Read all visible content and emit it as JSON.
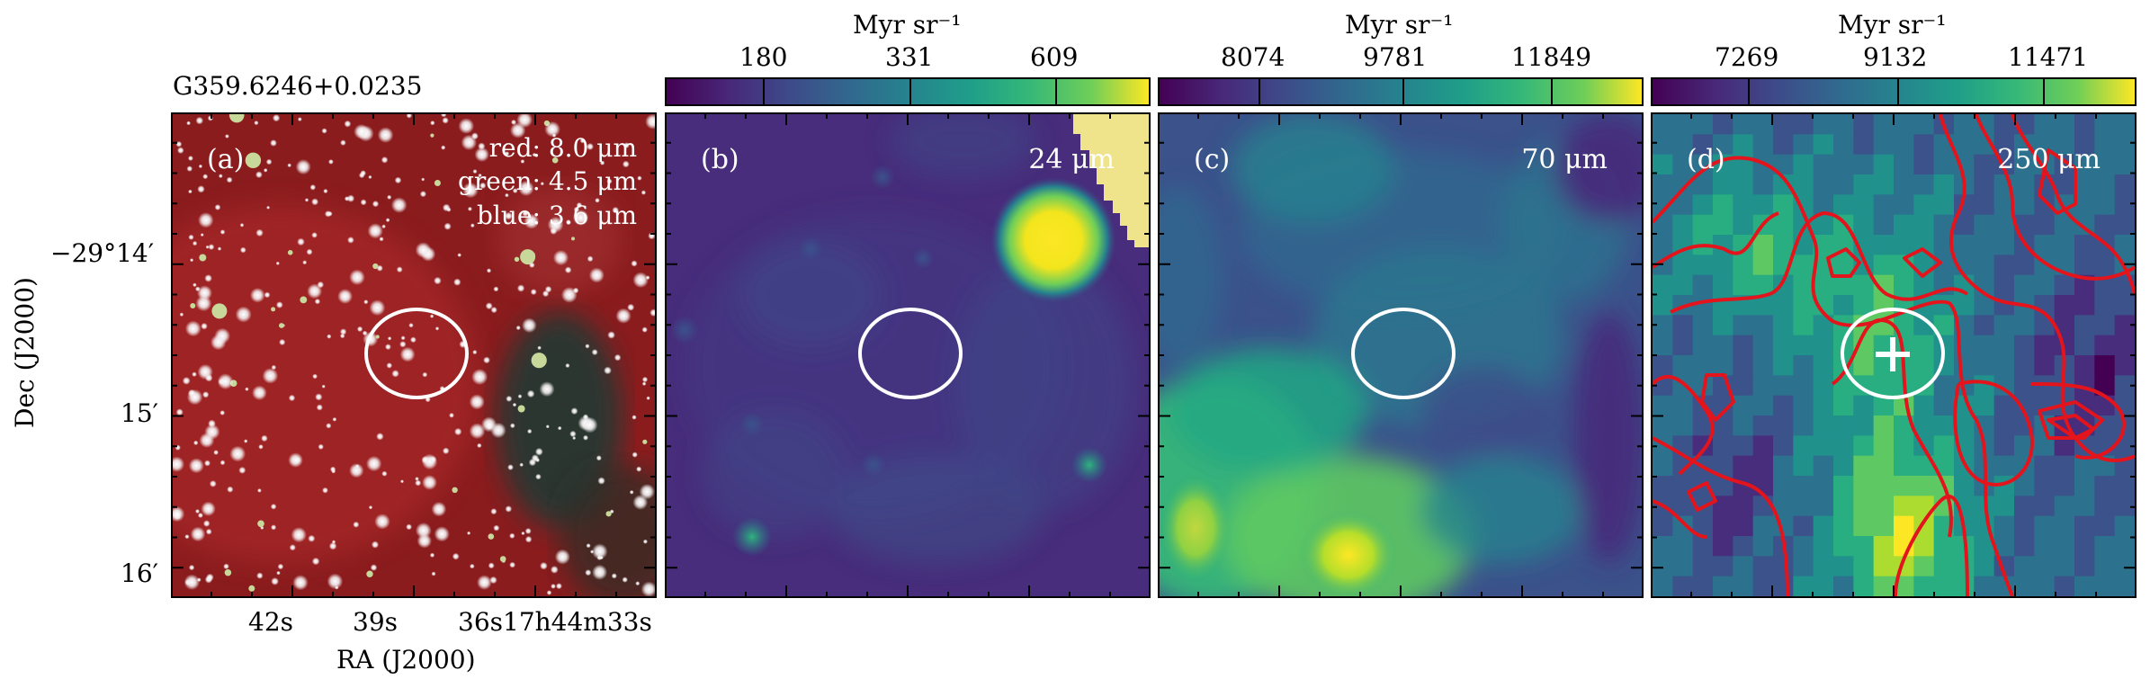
{
  "figure": {
    "source_name": "G359.6246+0.0235",
    "ra_axis_label": "RA (J2000)",
    "dec_axis_label": "Dec (J2000)",
    "ra_ticks": [
      "42s",
      "39s",
      "36s17h44m33s"
    ],
    "dec_ticks": [
      "−29°14′",
      "15′",
      "16′"
    ]
  },
  "panels": [
    {
      "id": "a",
      "label": "(a)",
      "legend": [
        "red: 8.0 μm",
        "green: 4.5 μm",
        "blue: 3.6 μm"
      ],
      "background": "#8c1a1a"
    },
    {
      "id": "b",
      "label": "(b)",
      "wavelength": "24 μm",
      "colorbar_unit": "Myr sr⁻¹",
      "colorbar_ticks": [
        "180",
        "331",
        "609"
      ]
    },
    {
      "id": "c",
      "label": "(c)",
      "wavelength": "70 μm",
      "colorbar_unit": "Myr sr⁻¹",
      "colorbar_ticks": [
        "8074",
        "9781",
        "11849"
      ]
    },
    {
      "id": "d",
      "label": "(d)",
      "wavelength": "250 μm",
      "colorbar_unit": "Myr sr⁻¹",
      "colorbar_ticks": [
        "7269",
        "9132",
        "11471"
      ]
    }
  ],
  "colors": {
    "viridis_low": "#440154",
    "viridis_mid": "#21918c",
    "viridis_high": "#fde725",
    "contour": "#e3141c",
    "ellipse": "#ffffff"
  }
}
